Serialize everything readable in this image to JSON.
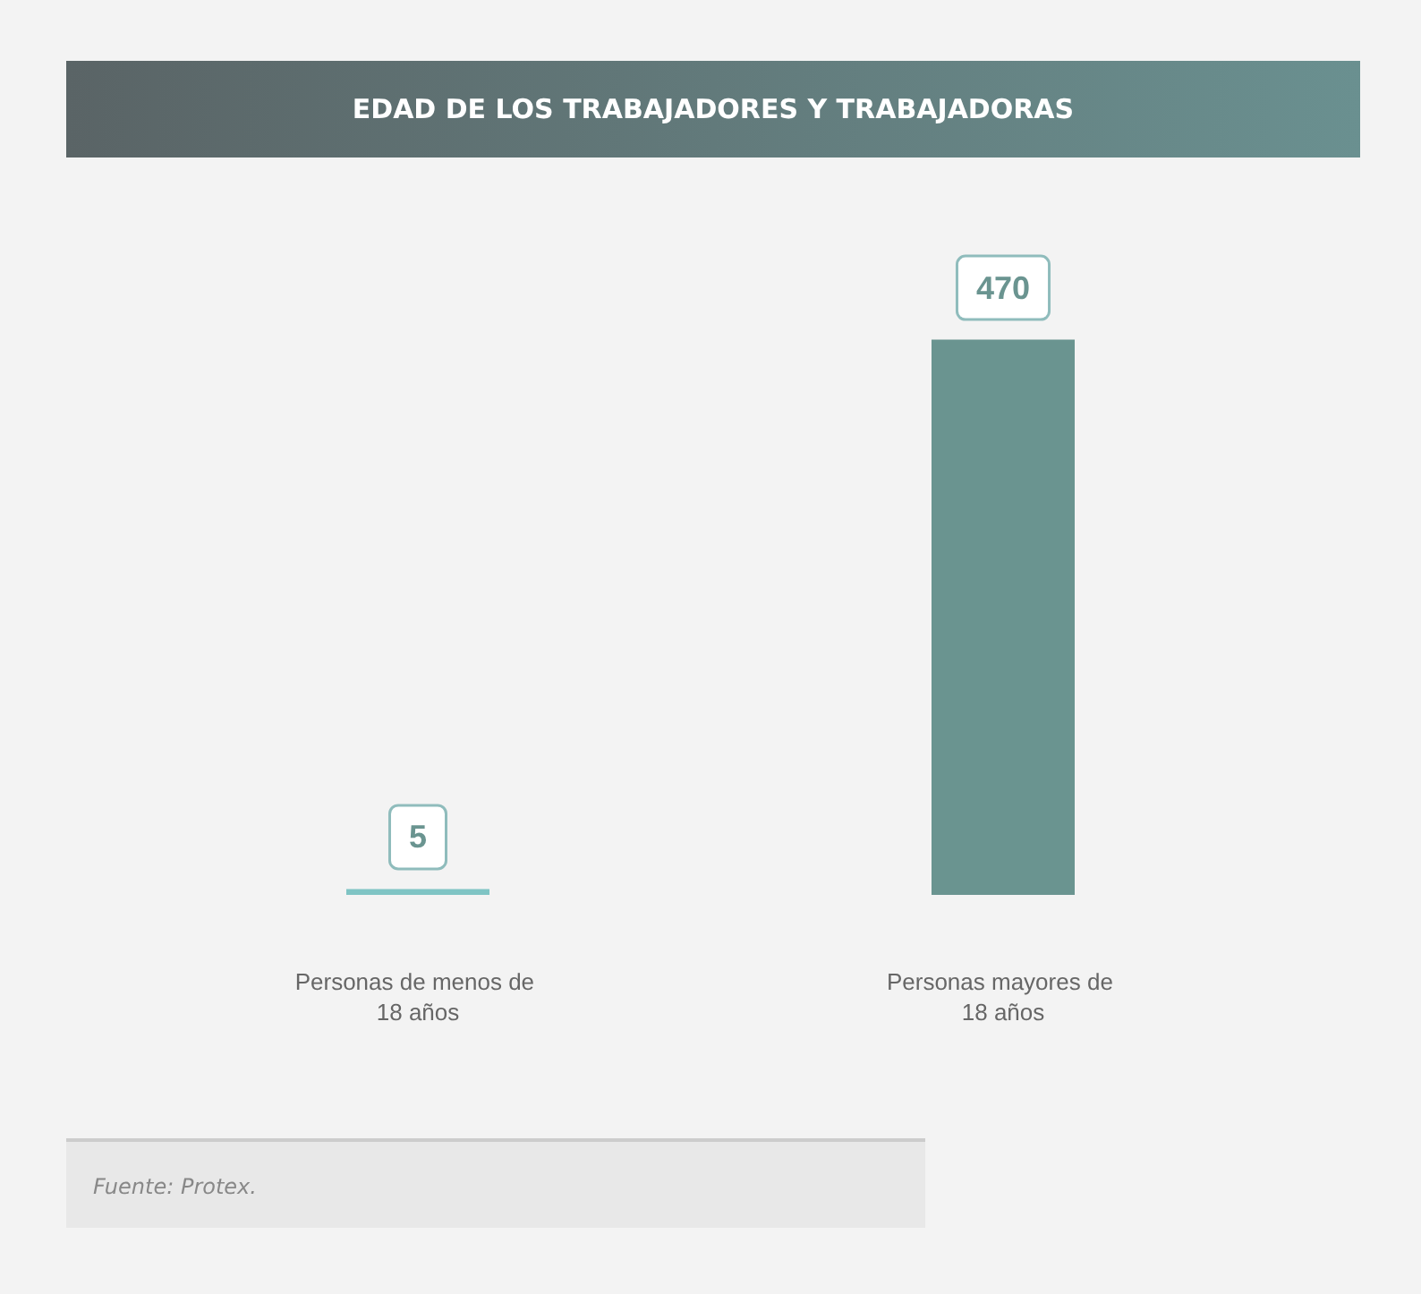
{
  "chart_data": {
    "type": "bar",
    "title": "EDAD DE LOS TRABAJADORES Y TRABAJADORAS",
    "categories": [
      "Personas de menos de 18 años",
      "Personas mayores de 18 años"
    ],
    "values": [
      5,
      470
    ],
    "colors": [
      "#7fc4c4",
      "#6a9490"
    ],
    "data_labels": true,
    "annotations": [
      "Fuente: Protex."
    ]
  }
}
